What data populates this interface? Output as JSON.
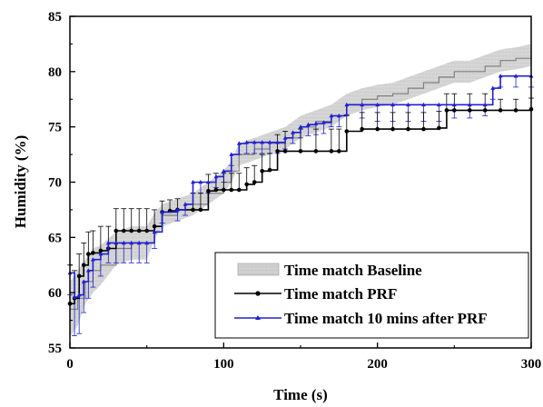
{
  "chart_data": {
    "type": "line",
    "xlabel": "Time (s)",
    "ylabel": "Humidity (%)",
    "xlim": [
      0,
      300
    ],
    "ylim": [
      55,
      85
    ],
    "xticks": [
      0,
      100,
      200,
      300
    ],
    "yticks": [
      55,
      60,
      65,
      70,
      75,
      80,
      85
    ],
    "grid": false,
    "legend_position": "bottom-right",
    "series": [
      {
        "name": "Time match Baseline",
        "style": "band",
        "color": "#808080",
        "x": [
          0,
          5,
          10,
          15,
          20,
          30,
          40,
          50,
          55,
          60,
          70,
          80,
          90,
          100,
          105,
          110,
          120,
          130,
          140,
          150,
          160,
          170,
          180,
          190,
          200,
          210,
          220,
          230,
          240,
          250,
          260,
          270,
          280,
          290,
          300
        ],
        "values": [
          58.5,
          59.5,
          61.0,
          62.0,
          62.5,
          64.0,
          64.5,
          64.5,
          66.0,
          67.0,
          67.5,
          68.0,
          69.0,
          70.0,
          71.0,
          72.5,
          73.0,
          73.5,
          74.0,
          75.0,
          75.5,
          76.0,
          77.0,
          77.5,
          77.8,
          78.0,
          78.5,
          79.0,
          79.5,
          80.0,
          80.0,
          80.5,
          81.0,
          81.2,
          81.5
        ],
        "error": [
          2.5,
          2.5,
          2.0,
          2.0,
          1.8,
          1.5,
          1.5,
          1.5,
          1.2,
          1.0,
          1.0,
          1.0,
          1.0,
          1.0,
          1.0,
          1.0,
          1.0,
          1.0,
          1.0,
          1.0,
          1.0,
          1.0,
          1.0,
          1.0,
          1.0,
          1.0,
          1.0,
          1.0,
          1.0,
          1.0,
          1.0,
          1.0,
          1.0,
          1.0,
          1.0
        ]
      },
      {
        "name": "Time match PRF",
        "style": "line-circle",
        "color": "#000000",
        "x": [
          0,
          3,
          6,
          9,
          12,
          15,
          20,
          25,
          30,
          35,
          40,
          45,
          50,
          55,
          60,
          65,
          70,
          80,
          85,
          90,
          95,
          100,
          105,
          110,
          115,
          120,
          125,
          130,
          135,
          140,
          150,
          160,
          170,
          175,
          180,
          190,
          200,
          210,
          220,
          230,
          240,
          245,
          250,
          260,
          270,
          280,
          290,
          300
        ],
        "values": [
          59.0,
          59.5,
          61.5,
          62.5,
          63.5,
          63.6,
          63.8,
          64.0,
          65.6,
          65.6,
          65.6,
          65.6,
          65.6,
          66.0,
          67.3,
          67.4,
          67.5,
          67.5,
          67.5,
          69.2,
          69.3,
          69.3,
          69.3,
          69.3,
          69.8,
          70.0,
          71.0,
          71.1,
          72.8,
          72.8,
          72.8,
          72.8,
          72.8,
          72.8,
          74.6,
          74.8,
          74.8,
          74.8,
          74.8,
          74.8,
          74.9,
          76.5,
          76.5,
          76.5,
          76.5,
          76.5,
          76.5,
          76.6
        ],
        "error_up": [
          3.5,
          2.5,
          2.0,
          2.0,
          2.0,
          2.0,
          2.2,
          2.0,
          2.0,
          2.0,
          2.0,
          2.0,
          2.0,
          1.5,
          1.0,
          1.0,
          1.0,
          1.5,
          1.5,
          1.5,
          1.5,
          1.5,
          1.5,
          1.5,
          1.5,
          1.5,
          1.5,
          1.5,
          1.5,
          1.8,
          2.0,
          2.0,
          2.0,
          2.0,
          1.5,
          1.5,
          1.5,
          1.5,
          1.5,
          1.5,
          1.5,
          1.5,
          1.5,
          1.5,
          1.5,
          1.0,
          1.0,
          1.0
        ]
      },
      {
        "name": "Time match 10 mins after PRF",
        "style": "line-triangle",
        "color": "#2020d0",
        "x": [
          0,
          3,
          6,
          9,
          12,
          15,
          20,
          25,
          30,
          35,
          40,
          45,
          50,
          55,
          60,
          70,
          75,
          80,
          85,
          90,
          95,
          100,
          105,
          110,
          115,
          120,
          125,
          130,
          135,
          140,
          145,
          150,
          155,
          160,
          165,
          170,
          175,
          180,
          190,
          200,
          210,
          220,
          230,
          240,
          250,
          260,
          270,
          275,
          280,
          290,
          300
        ],
        "values": [
          61.8,
          59.6,
          59.8,
          61.0,
          62.0,
          63.0,
          63.5,
          64.5,
          64.5,
          64.5,
          64.5,
          64.5,
          64.5,
          65.5,
          67.3,
          67.5,
          68.0,
          70.0,
          70.0,
          70.0,
          70.5,
          71.0,
          72.5,
          73.5,
          73.6,
          73.6,
          73.6,
          73.6,
          73.6,
          74.0,
          74.5,
          75.0,
          75.2,
          75.3,
          75.4,
          76.0,
          76.0,
          77.0,
          77.0,
          77.0,
          77.0,
          77.0,
          77.0,
          77.0,
          77.0,
          77.0,
          77.0,
          78.5,
          79.6,
          79.6,
          79.6
        ],
        "error_down": [
          2.0,
          3.5,
          3.5,
          2.8,
          2.5,
          2.5,
          2.0,
          1.8,
          1.8,
          1.8,
          1.8,
          1.8,
          1.8,
          1.5,
          1.0,
          1.0,
          1.0,
          1.0,
          1.0,
          1.0,
          1.0,
          1.0,
          1.0,
          1.0,
          1.0,
          1.0,
          1.0,
          1.0,
          1.0,
          1.0,
          1.0,
          1.0,
          1.0,
          1.0,
          1.0,
          1.0,
          1.0,
          1.0,
          1.2,
          1.5,
          1.5,
          1.5,
          1.5,
          1.5,
          1.2,
          1.2,
          1.0,
          1.0,
          1.0,
          1.0,
          1.0
        ]
      }
    ]
  }
}
